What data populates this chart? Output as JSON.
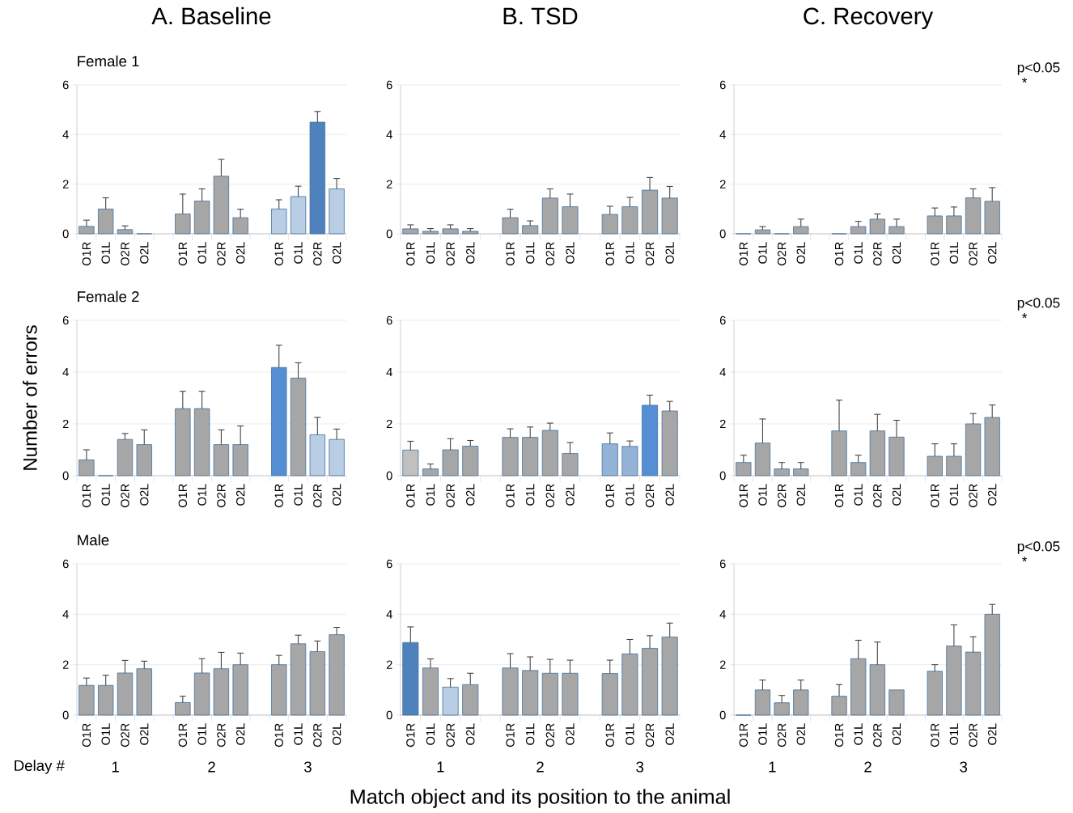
{
  "chart_data": [
    {
      "type": "bar",
      "title": "A. Baseline",
      "subtitle": "Female 1",
      "categories": [
        "O1R",
        "O1L",
        "O2R",
        "O2L",
        "O1R",
        "O1L",
        "O2R",
        "O2L",
        "O1R",
        "O1L",
        "O2R",
        "O2L"
      ],
      "values": [
        0.3,
        1.0,
        0.17,
        0,
        0.8,
        1.32,
        2.32,
        0.65,
        1.0,
        1.5,
        4.5,
        1.81
      ],
      "errors": [
        [
          0.3,
          0.55
        ],
        [
          1.0,
          1.45
        ],
        [
          0.17,
          0.32
        ],
        null,
        [
          0.8,
          1.6
        ],
        [
          1.32,
          1.81
        ],
        [
          2.32,
          3.0
        ],
        [
          0.65,
          0.99
        ],
        [
          1.0,
          1.37
        ],
        [
          1.5,
          1.92
        ],
        [
          4.5,
          4.93
        ],
        [
          1.81,
          2.23
        ]
      ],
      "colors": [
        "#a6a6a6",
        "#a6a6a6",
        "#a6a6a6",
        "#a6a6a6",
        "#a6a6a6",
        "#a6a6a6",
        "#a6a6a6",
        "#a6a6a6",
        "#b9cde5",
        "#b9cde5",
        "#4f81bd",
        "#b9cde5"
      ],
      "ylim": [
        0,
        6
      ],
      "yticks": [
        0,
        2,
        4,
        6
      ],
      "grid": "y"
    },
    {
      "type": "bar",
      "title": "B. TSD",
      "categories": [
        "O1R",
        "O1L",
        "O2R",
        "O2L",
        "O1R",
        "O1L",
        "O2R",
        "O2L",
        "O1R",
        "O1L",
        "O2R",
        "O2L"
      ],
      "values": [
        0.2,
        0.1,
        0.2,
        0.1,
        0.65,
        0.33,
        1.44,
        1.09,
        0.78,
        1.09,
        1.76,
        1.44
      ],
      "errors": [
        [
          0.2,
          0.36
        ],
        [
          0.1,
          0.21
        ],
        [
          0.2,
          0.36
        ],
        [
          0.1,
          0.21
        ],
        [
          0.65,
          0.99
        ],
        [
          0.33,
          0.52
        ],
        [
          1.44,
          1.81
        ],
        [
          1.09,
          1.6
        ],
        [
          0.78,
          1.11
        ],
        [
          1.09,
          1.47
        ],
        [
          1.76,
          2.27
        ],
        [
          1.44,
          1.91
        ]
      ],
      "colors": [
        "#a6a6a6",
        "#a6a6a6",
        "#a6a6a6",
        "#a6a6a6",
        "#a6a6a6",
        "#a6a6a6",
        "#a6a6a6",
        "#a6a6a6",
        "#a6a6a6",
        "#a6a6a6",
        "#a6a6a6",
        "#a6a6a6"
      ],
      "ylim": [
        0,
        6
      ],
      "yticks": [
        0,
        2,
        4,
        6
      ],
      "grid": "y"
    },
    {
      "type": "bar",
      "title": "C. Recovery",
      "annotations": [
        "p<0.05",
        "*"
      ],
      "categories": [
        "O1R",
        "O1L",
        "O2R",
        "O2L",
        "O1R",
        "O1L",
        "O2R",
        "O2L",
        "O1R",
        "O1L",
        "O2R",
        "O2L"
      ],
      "values": [
        0,
        0.16,
        0,
        0.29,
        0,
        0.29,
        0.59,
        0.29,
        0.72,
        0.72,
        1.45,
        1.31
      ],
      "errors": [
        null,
        [
          0.16,
          0.29
        ],
        null,
        [
          0.29,
          0.59
        ],
        null,
        [
          0.29,
          0.5
        ],
        [
          0.59,
          0.8
        ],
        [
          0.29,
          0.59
        ],
        [
          0.72,
          1.04
        ],
        [
          0.72,
          1.08
        ],
        [
          1.45,
          1.81
        ],
        [
          1.31,
          1.86
        ]
      ],
      "colors": [
        "#a6a6a6",
        "#a6a6a6",
        "#a6a6a6",
        "#a6a6a6",
        "#a6a6a6",
        "#a6a6a6",
        "#a6a6a6",
        "#a6a6a6",
        "#a6a6a6",
        "#a6a6a6",
        "#a6a6a6",
        "#a6a6a6"
      ],
      "ylim": [
        0,
        6
      ],
      "yticks": [
        0,
        2,
        4,
        6
      ],
      "grid": "y"
    },
    {
      "type": "bar",
      "subtitle": "Female 2",
      "ylabel": "Number of errors",
      "categories": [
        "O1R",
        "O1L",
        "O2R",
        "O2L",
        "O1R",
        "O1L",
        "O2R",
        "O2L",
        "O1R",
        "O1L",
        "O2R",
        "O2L"
      ],
      "values": [
        0.61,
        0,
        1.4,
        1.2,
        2.59,
        2.59,
        1.2,
        1.2,
        4.18,
        3.77,
        1.58,
        1.4
      ],
      "errors": [
        [
          0.61,
          1.0
        ],
        null,
        [
          1.4,
          1.63
        ],
        [
          1.2,
          1.77
        ],
        [
          2.59,
          3.26
        ],
        [
          2.59,
          3.26
        ],
        [
          1.2,
          1.77
        ],
        [
          1.2,
          1.92
        ],
        [
          4.18,
          5.04
        ],
        [
          3.77,
          4.36
        ],
        [
          1.58,
          2.25
        ],
        [
          1.4,
          1.8
        ]
      ],
      "colors": [
        "#a6a6a6",
        "#a6a6a6",
        "#a6a6a6",
        "#a6a6a6",
        "#a6a6a6",
        "#a6a6a6",
        "#a6a6a6",
        "#a6a6a6",
        "#558ed5",
        "#a6a6a6",
        "#b9cde5",
        "#b9cde5"
      ],
      "ylim": [
        0,
        6
      ],
      "yticks": [
        0,
        2,
        4,
        6
      ],
      "grid": "y"
    },
    {
      "type": "bar",
      "categories": [
        "O1R",
        "O1L",
        "O2R",
        "O2L",
        "O1R",
        "O1L",
        "O2R",
        "O2L",
        "O1R",
        "O1L",
        "O2R",
        "O2L"
      ],
      "values": [
        0.99,
        0.26,
        1.0,
        1.14,
        1.48,
        1.48,
        1.75,
        0.86,
        1.23,
        1.13,
        2.72,
        2.5
      ],
      "errors": [
        [
          0.99,
          1.33
        ],
        [
          0.26,
          0.45
        ],
        [
          1.0,
          1.43
        ],
        [
          1.14,
          1.36
        ],
        [
          1.48,
          1.81
        ],
        [
          1.48,
          1.88
        ],
        [
          1.75,
          2.03
        ],
        [
          0.86,
          1.28
        ],
        [
          1.23,
          1.65
        ],
        [
          1.13,
          1.34
        ],
        [
          2.72,
          3.11
        ],
        [
          2.5,
          2.87
        ]
      ],
      "colors": [
        "#c0c0c0",
        "#a6a6a6",
        "#a6a6a6",
        "#a6a6a6",
        "#a6a6a6",
        "#a6a6a6",
        "#a6a6a6",
        "#a6a6a6",
        "#95b3d7",
        "#95b3d7",
        "#558ed5",
        "#a6a6a6"
      ],
      "ylim": [
        0,
        6
      ],
      "yticks": [
        0,
        2,
        4,
        6
      ],
      "grid": "y"
    },
    {
      "type": "bar",
      "annotations": [
        "p<0.05",
        "*"
      ],
      "categories": [
        "O1R",
        "O1L",
        "O2R",
        "O2L",
        "O1R",
        "O1L",
        "O2R",
        "O2L",
        "O1R",
        "O1L",
        "O2R",
        "O2L"
      ],
      "values": [
        0.51,
        1.26,
        0.26,
        0.26,
        1.73,
        0.51,
        1.73,
        1.49,
        0.75,
        0.75,
        2.0,
        2.25
      ],
      "errors": [
        [
          0.51,
          0.79
        ],
        [
          1.26,
          2.19
        ],
        [
          0.26,
          0.51
        ],
        [
          0.26,
          0.51
        ],
        [
          1.73,
          2.92
        ],
        [
          0.51,
          0.79
        ],
        [
          1.73,
          2.37
        ],
        [
          1.49,
          2.14
        ],
        [
          0.75,
          1.23
        ],
        [
          0.75,
          1.23
        ],
        [
          2.0,
          2.4
        ],
        [
          2.25,
          2.73
        ]
      ],
      "colors": [
        "#a6a6a6",
        "#a6a6a6",
        "#a6a6a6",
        "#a6a6a6",
        "#a6a6a6",
        "#a6a6a6",
        "#a6a6a6",
        "#a6a6a6",
        "#a6a6a6",
        "#a6a6a6",
        "#a6a6a6",
        "#a6a6a6"
      ],
      "ylim": [
        0,
        6
      ],
      "yticks": [
        0,
        2,
        4,
        6
      ],
      "grid": "y"
    },
    {
      "type": "bar",
      "subtitle": "Male",
      "xlabel": "Delay  #",
      "annotations": [
        "1",
        "2",
        "3"
      ],
      "categories": [
        "O1R",
        "O1L",
        "O2R",
        "O2L",
        "O1R",
        "O1L",
        "O2R",
        "O2L",
        "O1R",
        "O1L",
        "O2R",
        "O2L"
      ],
      "values": [
        1.18,
        1.18,
        1.67,
        1.84,
        0.5,
        1.67,
        1.84,
        2.0,
        2.0,
        2.83,
        2.52,
        3.19
      ],
      "errors": [
        [
          1.18,
          1.47
        ],
        [
          1.18,
          1.58
        ],
        [
          1.67,
          2.17
        ],
        [
          1.84,
          2.14
        ],
        [
          0.5,
          0.75
        ],
        [
          1.67,
          2.24
        ],
        [
          1.84,
          2.49
        ],
        [
          2.0,
          2.46
        ],
        [
          2.0,
          2.37
        ],
        [
          2.83,
          3.17
        ],
        [
          2.52,
          2.94
        ],
        [
          3.19,
          3.48
        ]
      ],
      "colors": [
        "#a6a6a6",
        "#a6a6a6",
        "#a6a6a6",
        "#a6a6a6",
        "#a6a6a6",
        "#a6a6a6",
        "#a6a6a6",
        "#a6a6a6",
        "#a6a6a6",
        "#a6a6a6",
        "#a6a6a6",
        "#a6a6a6"
      ],
      "ylim": [
        0,
        6
      ],
      "yticks": [
        0,
        2,
        4,
        6
      ],
      "grid": "y"
    },
    {
      "type": "bar",
      "xlabel": "Match object and its position to the animal",
      "annotations": [
        "1",
        "2",
        "3"
      ],
      "categories": [
        "O1R",
        "O1L",
        "O2R",
        "O2L",
        "O1R",
        "O1L",
        "O2R",
        "O2L",
        "O1R",
        "O1L",
        "O2R",
        "O2L"
      ],
      "values": [
        2.88,
        1.87,
        1.11,
        1.21,
        1.87,
        1.77,
        1.66,
        1.66,
        1.65,
        2.43,
        2.65,
        3.1
      ],
      "errors": [
        [
          2.88,
          3.5
        ],
        [
          1.87,
          2.23
        ],
        [
          1.11,
          1.45
        ],
        [
          1.21,
          1.66
        ],
        [
          1.87,
          2.44
        ],
        [
          1.77,
          2.31
        ],
        [
          1.66,
          2.21
        ],
        [
          1.66,
          2.18
        ],
        [
          1.65,
          2.18
        ],
        [
          2.43,
          3.0
        ],
        [
          2.65,
          3.15
        ],
        [
          3.1,
          3.65
        ]
      ],
      "colors": [
        "#4f81bd",
        "#a6a6a6",
        "#b9cde5",
        "#a6a6a6",
        "#a6a6a6",
        "#a6a6a6",
        "#a6a6a6",
        "#a6a6a6",
        "#a6a6a6",
        "#a6a6a6",
        "#a6a6a6",
        "#a6a6a6"
      ],
      "ylim": [
        0,
        6
      ],
      "yticks": [
        0,
        2,
        4,
        6
      ],
      "grid": "y"
    },
    {
      "type": "bar",
      "annotations": [
        "1",
        "2",
        "3",
        "p<0.05",
        "*"
      ],
      "categories": [
        "O1R",
        "O1L",
        "O2R",
        "O2L",
        "O1R",
        "O1L",
        "O2R",
        "O2L",
        "O1R",
        "O1L",
        "O2R",
        "O2L"
      ],
      "values": [
        0,
        1.0,
        0.49,
        1.0,
        0.75,
        2.24,
        2.0,
        1.0,
        1.74,
        2.74,
        2.5,
        4.0
      ],
      "errors": [
        null,
        [
          1.0,
          1.39
        ],
        [
          0.49,
          0.78
        ],
        [
          1.0,
          1.39
        ],
        [
          0.75,
          1.21
        ],
        [
          2.24,
          2.97
        ],
        [
          2.0,
          2.9
        ],
        null,
        [
          1.74,
          2.0
        ],
        [
          2.74,
          3.58
        ],
        [
          2.5,
          3.11
        ],
        [
          4.0,
          4.39
        ]
      ],
      "colors": [
        "#a6a6a6",
        "#a6a6a6",
        "#a6a6a6",
        "#a6a6a6",
        "#a6a6a6",
        "#a6a6a6",
        "#a6a6a6",
        "#a6a6a6",
        "#a6a6a6",
        "#a6a6a6",
        "#a6a6a6",
        "#a6a6a6"
      ],
      "ylim": [
        0,
        6
      ],
      "yticks": [
        0,
        2,
        4,
        6
      ],
      "grid": "y"
    }
  ]
}
